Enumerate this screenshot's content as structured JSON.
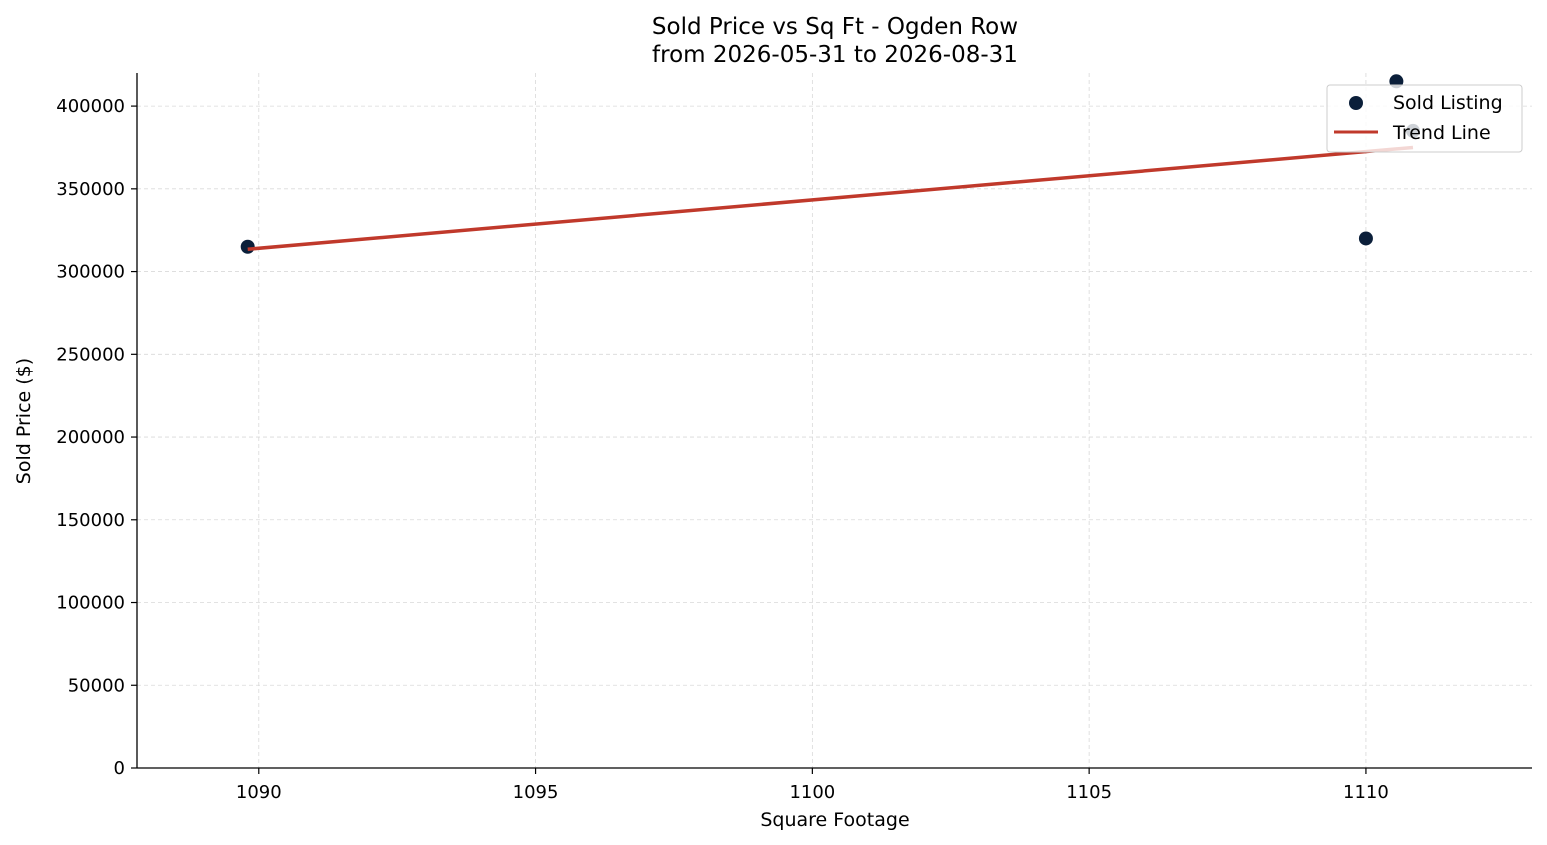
{
  "chart_data": {
    "type": "scatter",
    "title": "Sold Price vs Sq Ft - Ogden Row",
    "subtitle": "from 2026-05-31 to 2026-08-31",
    "xlabel": "Square Footage",
    "ylabel": "Sold Price ($)",
    "xlim": [
      1087.8,
      1113.0
    ],
    "ylim": [
      0,
      420000
    ],
    "xticks": [
      1090,
      1095,
      1100,
      1105,
      1110
    ],
    "yticks": [
      0,
      50000,
      100000,
      150000,
      200000,
      250000,
      300000,
      350000,
      400000
    ],
    "grid": true,
    "legend_position": "top-right",
    "series": [
      {
        "name": "Sold Listing",
        "kind": "scatter",
        "color": "#0b1f3a",
        "points": [
          {
            "x": 1089.8,
            "y": 315000
          },
          {
            "x": 1110.0,
            "y": 320000
          },
          {
            "x": 1110.55,
            "y": 415000
          },
          {
            "x": 1110.85,
            "y": 385000
          }
        ]
      },
      {
        "name": "Trend Line",
        "kind": "line",
        "color": "#c0392b",
        "points": [
          {
            "x": 1089.8,
            "y": 313500
          },
          {
            "x": 1110.85,
            "y": 375000
          }
        ]
      }
    ]
  }
}
